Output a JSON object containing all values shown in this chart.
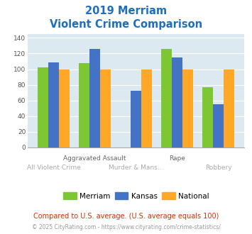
{
  "title_line1": "2019 Merriam",
  "title_line2": "Violent Crime Comparison",
  "merriam": [
    102,
    108,
    0,
    126,
    77
  ],
  "kansas": [
    109,
    126,
    72,
    115,
    55
  ],
  "national": [
    100,
    100,
    100,
    100,
    100
  ],
  "merriam_color": "#7dc832",
  "kansas_color": "#4472c4",
  "national_color": "#ffa726",
  "bg_color": "#dce9f0",
  "title_color": "#1e6fbd",
  "ylim": [
    0,
    145
  ],
  "yticks": [
    0,
    20,
    40,
    60,
    80,
    100,
    120,
    140
  ],
  "footnote1": "Compared to U.S. average. (U.S. average equals 100)",
  "footnote2": "© 2025 CityRating.com - https://www.cityrating.com/crime-statistics/",
  "footnote1_color": "#cc3300",
  "footnote2_color": "#999999",
  "footnote2_link_color": "#4472c4"
}
